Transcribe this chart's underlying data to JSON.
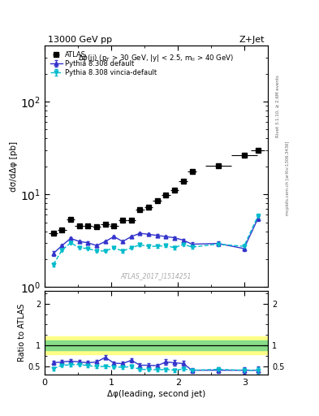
{
  "title_top": "13000 GeV pp",
  "title_right": "Z+Jet",
  "right_label1": "Rivet 3.1.10, ≥ 2.6M events",
  "right_label2": "mcplots.cern.ch [arXiv:1306.3436]",
  "inner_title": "Δφ(jj) (p_T > 30 GeV, |y| < 2.5, m_{ll} > 40 GeV)",
  "ylabel_main": "dσ/dΔφ [pb]",
  "ylabel_ratio": "Ratio to ATLAS",
  "xlabel": "Δφ(leading, second jet)",
  "watermark": "ATLAS_2017_I1514251",
  "ylim_main": [
    1.0,
    400.0
  ],
  "ylim_ratio": [
    0.3,
    2.3
  ],
  "xlim": [
    0.0,
    3.35
  ],
  "atlas_x": [
    0.13,
    0.26,
    0.39,
    0.52,
    0.65,
    0.78,
    0.91,
    1.04,
    1.17,
    1.3,
    1.43,
    1.56,
    1.69,
    1.82,
    1.95,
    2.08,
    2.21,
    2.6,
    2.99,
    3.2
  ],
  "atlas_y": [
    3.8,
    4.1,
    5.4,
    4.6,
    4.6,
    4.5,
    4.8,
    4.6,
    5.3,
    5.3,
    6.8,
    7.3,
    8.5,
    9.8,
    11.2,
    13.8,
    17.5,
    20.5,
    26.5,
    30.0
  ],
  "atlas_xerr": [
    0.065,
    0.065,
    0.065,
    0.065,
    0.065,
    0.065,
    0.065,
    0.065,
    0.065,
    0.065,
    0.065,
    0.065,
    0.065,
    0.065,
    0.065,
    0.065,
    0.065,
    0.195,
    0.195,
    0.105
  ],
  "pythia_default_x": [
    0.13,
    0.26,
    0.39,
    0.52,
    0.65,
    0.78,
    0.91,
    1.04,
    1.17,
    1.3,
    1.43,
    1.56,
    1.69,
    1.82,
    1.95,
    2.08,
    2.21,
    2.6,
    2.99,
    3.2
  ],
  "pythia_default_y": [
    2.3,
    2.8,
    3.35,
    3.1,
    3.0,
    2.8,
    3.1,
    3.5,
    3.1,
    3.5,
    3.8,
    3.7,
    3.6,
    3.5,
    3.4,
    3.2,
    2.9,
    2.95,
    2.6,
    5.5
  ],
  "pythia_default_yerr": [
    0.12,
    0.1,
    0.09,
    0.09,
    0.09,
    0.09,
    0.09,
    0.09,
    0.1,
    0.1,
    0.1,
    0.1,
    0.11,
    0.12,
    0.12,
    0.13,
    0.14,
    0.15,
    0.18,
    0.3
  ],
  "pythia_vincia_x": [
    0.13,
    0.26,
    0.39,
    0.52,
    0.65,
    0.78,
    0.91,
    1.04,
    1.17,
    1.3,
    1.43,
    1.56,
    1.69,
    1.82,
    1.95,
    2.08,
    2.21,
    2.6,
    2.99,
    3.2
  ],
  "pythia_vincia_y": [
    1.75,
    2.5,
    3.0,
    2.65,
    2.6,
    2.45,
    2.45,
    2.65,
    2.45,
    2.65,
    2.85,
    2.75,
    2.75,
    2.8,
    2.65,
    2.9,
    2.7,
    2.9,
    2.75,
    5.85
  ],
  "pythia_vincia_yerr": [
    0.09,
    0.08,
    0.07,
    0.07,
    0.07,
    0.07,
    0.07,
    0.07,
    0.08,
    0.08,
    0.08,
    0.08,
    0.09,
    0.09,
    0.09,
    0.1,
    0.11,
    0.12,
    0.14,
    0.28
  ],
  "ratio_default_y": [
    0.58,
    0.6,
    0.62,
    0.6,
    0.58,
    0.6,
    0.71,
    0.57,
    0.56,
    0.64,
    0.52,
    0.52,
    0.51,
    0.6,
    0.58,
    0.56,
    0.4,
    0.4,
    0.4,
    0.4
  ],
  "ratio_default_yerr": [
    0.05,
    0.04,
    0.04,
    0.04,
    0.04,
    0.04,
    0.05,
    0.04,
    0.05,
    0.05,
    0.04,
    0.04,
    0.04,
    0.06,
    0.06,
    0.07,
    0.06,
    0.07,
    0.08,
    0.1
  ],
  "ratio_vincia_y": [
    0.44,
    0.52,
    0.53,
    0.54,
    0.51,
    0.49,
    0.49,
    0.48,
    0.47,
    0.49,
    0.42,
    0.42,
    0.41,
    0.42,
    0.4,
    0.43,
    0.4,
    0.42,
    0.4,
    0.4
  ],
  "ratio_vincia_yerr": [
    0.04,
    0.03,
    0.03,
    0.03,
    0.03,
    0.03,
    0.03,
    0.03,
    0.04,
    0.04,
    0.03,
    0.03,
    0.04,
    0.04,
    0.04,
    0.04,
    0.04,
    0.05,
    0.05,
    0.08
  ],
  "atlas_color": "#000000",
  "pythia_default_color": "#3333cc",
  "pythia_vincia_color": "#00bbcc",
  "band_green_half": 0.12,
  "band_yellow_half": 0.22,
  "xticks": [
    0,
    1,
    2,
    3
  ],
  "xtick_labels": [
    "0",
    "1",
    "2",
    "3"
  ],
  "ratio_yticks": [
    0.5,
    1.0,
    2.0
  ],
  "ratio_ytick_labels": [
    "0.5",
    "1",
    "2"
  ]
}
